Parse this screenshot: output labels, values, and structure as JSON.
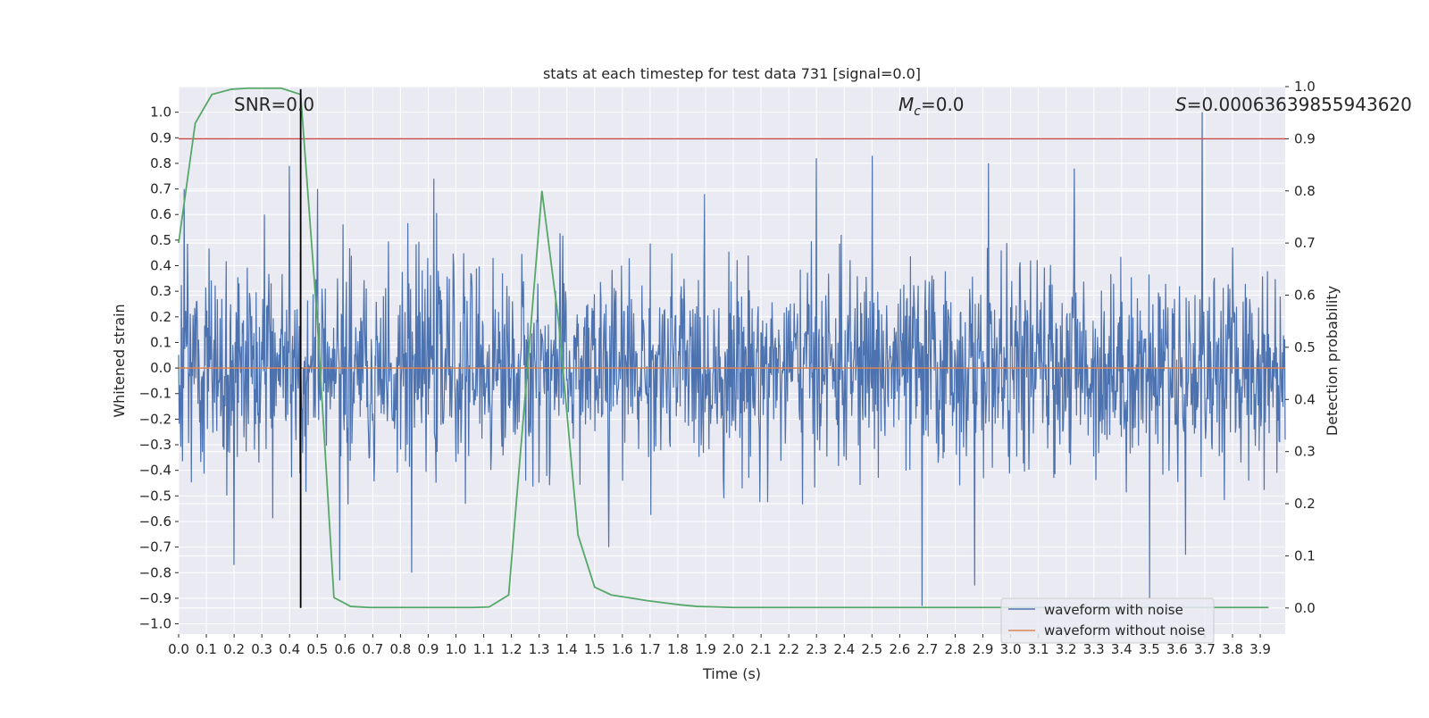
{
  "chart_data": {
    "type": "line",
    "title": "stats at each timestep for test data 731 [signal=0.0]",
    "xlabel": "Time (s)",
    "ylabel": "Whitened strain",
    "y2label": "Detection probability",
    "xlim": [
      0.0,
      3.99
    ],
    "ylim": [
      -1.04,
      1.1
    ],
    "y2lim": [
      -0.05,
      1.0
    ],
    "x_ticks": [
      "0.0",
      "0.1",
      "0.2",
      "0.3",
      "0.4",
      "0.5",
      "0.6",
      "0.7",
      "0.8",
      "0.9",
      "1.0",
      "1.1",
      "1.2",
      "1.3",
      "1.4",
      "1.5",
      "1.6",
      "1.7",
      "1.8",
      "1.9",
      "2.0",
      "2.1",
      "2.2",
      "2.3",
      "2.4",
      "2.5",
      "2.6",
      "2.7",
      "2.8",
      "2.9",
      "3.0",
      "3.1",
      "3.2",
      "3.3",
      "3.4",
      "3.5",
      "3.6",
      "3.7",
      "3.8",
      "3.9"
    ],
    "y_ticks": [
      "1.0",
      "0.9",
      "0.8",
      "0.7",
      "0.6",
      "0.5",
      "0.4",
      "0.3",
      "0.2",
      "0.1",
      "0.0",
      "−0.1",
      "−0.2",
      "−0.3",
      "−0.4",
      "−0.5",
      "−0.6",
      "−0.7",
      "−0.8",
      "−0.9",
      "−1.0"
    ],
    "y2_ticks": [
      "1.0",
      "0.9",
      "0.8",
      "0.7",
      "0.6",
      "0.5",
      "0.4",
      "0.3",
      "0.2",
      "0.1",
      "0.0"
    ],
    "grid": true,
    "annotations": {
      "snr": "SNR=0.0",
      "mc_symbol": "M",
      "mc_subscript": "c",
      "mc_value": "=0.0",
      "s_symbol": "S",
      "s_value": "=0.00063639855943620"
    },
    "threshold_y2": 0.9,
    "marker_x": 0.44,
    "legend": {
      "placement": "lower-right",
      "entries": [
        "waveform with noise",
        "waveform without noise"
      ]
    },
    "series": [
      {
        "name": "waveform with noise",
        "color": "#4c72b0",
        "kind": "noise",
        "samples": 2000,
        "amplitude": 0.19,
        "peaks": [
          {
            "x": 0.02,
            "y": 0.7
          },
          {
            "x": 0.31,
            "y": 0.6
          },
          {
            "x": 0.4,
            "y": 0.79
          },
          {
            "x": 0.5,
            "y": 0.7
          },
          {
            "x": 0.92,
            "y": 0.74
          },
          {
            "x": 2.3,
            "y": 0.82
          },
          {
            "x": 2.5,
            "y": 0.83
          },
          {
            "x": 2.92,
            "y": 0.8
          },
          {
            "x": 3.23,
            "y": 0.78
          },
          {
            "x": 3.69,
            "y": 1.0
          },
          {
            "x": 0.58,
            "y": -0.83
          },
          {
            "x": 0.2,
            "y": -0.77
          },
          {
            "x": 0.84,
            "y": -0.8
          },
          {
            "x": 2.68,
            "y": -0.93
          },
          {
            "x": 2.87,
            "y": -0.85
          },
          {
            "x": 3.5,
            "y": -0.9
          },
          {
            "x": 1.55,
            "y": -0.7
          },
          {
            "x": 3.63,
            "y": -0.73
          }
        ]
      },
      {
        "name": "waveform without noise",
        "color": "#dd8452",
        "kind": "line",
        "x": [
          0.0,
          3.99
        ],
        "y": [
          0.0,
          0.0
        ]
      },
      {
        "name": "detection probability",
        "color": "#55a868",
        "axis": "y2",
        "x": [
          0.0,
          0.06,
          0.12,
          0.19,
          0.25,
          0.31,
          0.37,
          0.44,
          0.5,
          0.56,
          0.62,
          0.69,
          0.75,
          0.81,
          0.87,
          0.94,
          1.0,
          1.06,
          1.12,
          1.19,
          1.25,
          1.31,
          1.37,
          1.44,
          1.5,
          1.56,
          1.62,
          1.69,
          1.75,
          1.81,
          1.87,
          1.94,
          2.0,
          2.2,
          2.5,
          3.0,
          3.5,
          3.93
        ],
        "y": [
          0.7,
          0.93,
          0.985,
          0.995,
          0.997,
          0.997,
          0.997,
          0.985,
          0.55,
          0.02,
          0.003,
          0.001,
          0.001,
          0.001,
          0.001,
          0.001,
          0.001,
          0.001,
          0.002,
          0.025,
          0.41,
          0.8,
          0.55,
          0.14,
          0.04,
          0.025,
          0.02,
          0.014,
          0.01,
          0.006,
          0.003,
          0.002,
          0.001,
          0.001,
          0.001,
          0.001,
          0.001,
          0.001
        ]
      }
    ]
  },
  "colors": {
    "axes_bg": "#eaeaf2",
    "grid": "#ffffff",
    "threshold": "#c44e52",
    "marker": "#000000",
    "text": "#262626"
  }
}
